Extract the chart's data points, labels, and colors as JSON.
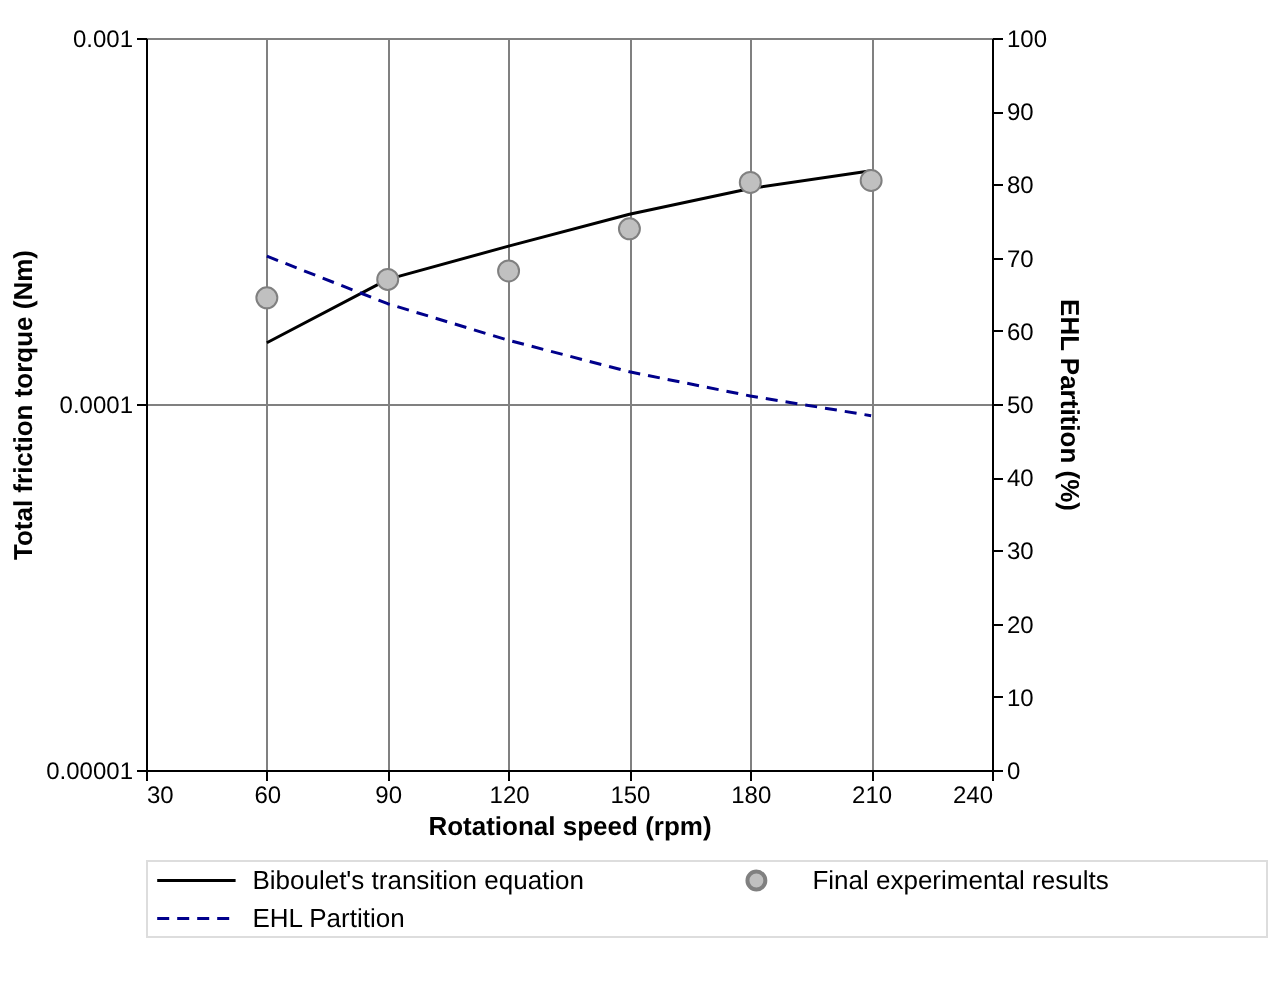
{
  "chart_data": {
    "type": "line",
    "xlabel": "Rotational speed (rpm)",
    "ylabel": "Total friction torque (Nm)",
    "y2label": "EHL Partition (%)",
    "x": [
      60,
      90,
      120,
      150,
      180,
      210
    ],
    "series": [
      {
        "name": "Biboulet's transition equation",
        "color": "#000000",
        "line_style": "solid",
        "values": [
          0.000147,
          0.000219,
          0.00027,
          0.00033,
          0.000388,
          0.000434
        ]
      },
      {
        "name": "Final experimental results",
        "type": "scatter",
        "color": "#c0c0c0",
        "marker": "circle",
        "values": [
          0.000195,
          0.000219,
          0.000231,
          0.000301,
          0.000403,
          0.000408
        ]
      },
      {
        "name": "EHL Partition",
        "color": "#00008b",
        "line_style": "dashed",
        "axis": "y2",
        "values": [
          70.2,
          63.7,
          58.7,
          54.4,
          51.1,
          48.4
        ]
      }
    ],
    "xlim": [
      30,
      240
    ],
    "xticks": [
      30,
      60,
      90,
      120,
      150,
      180,
      210,
      240
    ],
    "ylim": [
      1e-05,
      0.001
    ],
    "yticks": [
      {
        "value": 1e-05,
        "label": "0.00001"
      },
      0.0001,
      0.001
    ],
    "log": "y",
    "y2lim": [
      0,
      100
    ],
    "y2ticks": [
      0,
      10,
      20,
      30,
      40,
      50,
      60,
      70,
      80,
      90,
      100
    ],
    "grid": true,
    "legend": "bottom"
  }
}
